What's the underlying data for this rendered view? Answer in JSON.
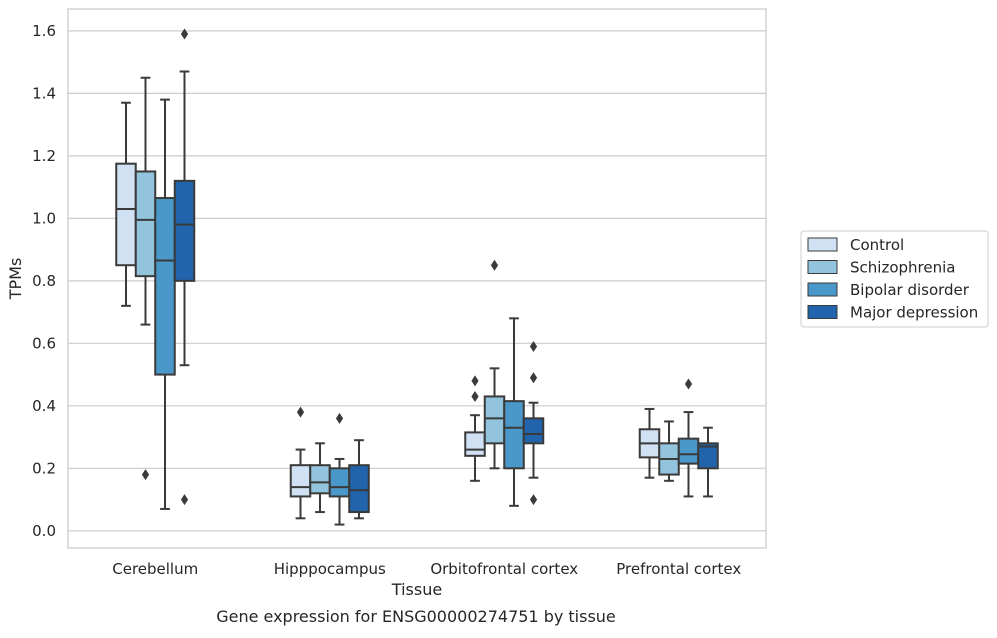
{
  "chart_data": {
    "type": "boxplot",
    "title": "",
    "caption": "Gene expression for ENSG00000274751 by tissue",
    "xlabel": "Tissue",
    "ylabel": "TPMs",
    "ylim": [
      -0.055,
      1.67
    ],
    "yticks": [
      "0.0",
      "0.2",
      "0.4",
      "0.6",
      "0.8",
      "1.0",
      "1.2",
      "1.4",
      "1.6"
    ],
    "grid": "horizontal",
    "legend_placement": "outside-right",
    "categories": [
      "Cerebellum",
      "Hipppocampus",
      "Orbitofrontal cortex",
      "Prefrontal cortex"
    ],
    "series": [
      {
        "name": "Control",
        "color": "#cfe1f2",
        "boxes": [
          {
            "whisker_low": 0.72,
            "q1": 0.85,
            "median": 1.03,
            "q3": 1.175,
            "whisker_high": 1.37,
            "outliers": []
          },
          {
            "whisker_low": 0.04,
            "q1": 0.11,
            "median": 0.14,
            "q3": 0.21,
            "whisker_high": 0.26,
            "outliers": [
              0.38
            ]
          },
          {
            "whisker_low": 0.16,
            "q1": 0.24,
            "median": 0.26,
            "q3": 0.315,
            "whisker_high": 0.37,
            "outliers": [
              0.43,
              0.48
            ]
          },
          {
            "whisker_low": 0.17,
            "q1": 0.235,
            "median": 0.28,
            "q3": 0.325,
            "whisker_high": 0.39,
            "outliers": []
          }
        ]
      },
      {
        "name": "Schizophrenia",
        "color": "#93c4de",
        "boxes": [
          {
            "whisker_low": 0.66,
            "q1": 0.815,
            "median": 0.995,
            "q3": 1.15,
            "whisker_high": 1.45,
            "outliers": [
              0.18
            ]
          },
          {
            "whisker_low": 0.06,
            "q1": 0.12,
            "median": 0.155,
            "q3": 0.21,
            "whisker_high": 0.28,
            "outliers": []
          },
          {
            "whisker_low": 0.2,
            "q1": 0.28,
            "median": 0.36,
            "q3": 0.43,
            "whisker_high": 0.52,
            "outliers": [
              0.85
            ]
          },
          {
            "whisker_low": 0.16,
            "q1": 0.18,
            "median": 0.23,
            "q3": 0.28,
            "whisker_high": 0.35,
            "outliers": []
          }
        ]
      },
      {
        "name": "Bipolar disorder",
        "color": "#4a98c9",
        "boxes": [
          {
            "whisker_low": 0.07,
            "q1": 0.5,
            "median": 0.865,
            "q3": 1.065,
            "whisker_high": 1.38,
            "outliers": []
          },
          {
            "whisker_low": 0.02,
            "q1": 0.11,
            "median": 0.14,
            "q3": 0.2,
            "whisker_high": 0.23,
            "outliers": [
              0.36
            ]
          },
          {
            "whisker_low": 0.08,
            "q1": 0.2,
            "median": 0.33,
            "q3": 0.415,
            "whisker_high": 0.68,
            "outliers": []
          },
          {
            "whisker_low": 0.11,
            "q1": 0.215,
            "median": 0.245,
            "q3": 0.295,
            "whisker_high": 0.38,
            "outliers": [
              0.47
            ]
          }
        ]
      },
      {
        "name": "Major depression",
        "color": "#2164ab",
        "boxes": [
          {
            "whisker_low": 0.53,
            "q1": 0.8,
            "median": 0.98,
            "q3": 1.12,
            "whisker_high": 1.47,
            "outliers": [
              1.59,
              0.1
            ]
          },
          {
            "whisker_low": 0.04,
            "q1": 0.06,
            "median": 0.13,
            "q3": 0.21,
            "whisker_high": 0.29,
            "outliers": []
          },
          {
            "whisker_low": 0.17,
            "q1": 0.28,
            "median": 0.31,
            "q3": 0.36,
            "whisker_high": 0.41,
            "outliers": [
              0.59,
              0.49,
              0.1
            ]
          },
          {
            "whisker_low": 0.11,
            "q1": 0.2,
            "median": 0.27,
            "q3": 0.28,
            "whisker_high": 0.33,
            "outliers": []
          }
        ]
      }
    ]
  }
}
